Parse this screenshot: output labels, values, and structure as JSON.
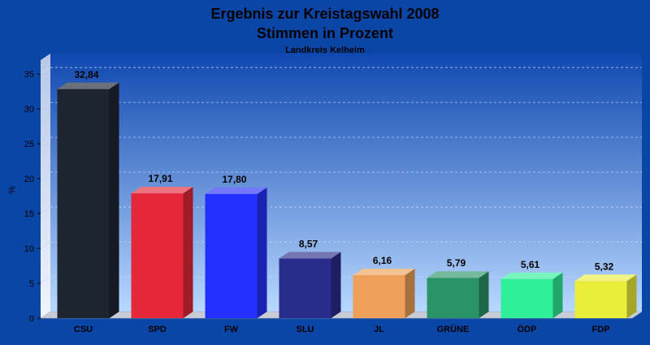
{
  "chart_data": {
    "type": "bar",
    "title": "Ergebnis zur Kreistagswahl 2008",
    "subtitle": "Stimmen in Prozent",
    "caption": "Landkreis Kelheim",
    "ylabel": "%",
    "xlabel": "",
    "ylim": [
      0,
      37
    ],
    "yticks": [
      0,
      5,
      10,
      15,
      20,
      25,
      30,
      35
    ],
    "grid": true,
    "categories": [
      "CSU",
      "SPD",
      "FW",
      "SLU",
      "JL",
      "GRÜNE",
      "ÖDP",
      "FDP"
    ],
    "values": [
      32.84,
      17.91,
      17.8,
      8.57,
      6.16,
      5.79,
      5.61,
      5.32
    ],
    "value_labels": [
      "32,84",
      "17,91",
      "17,80",
      "8,57",
      "6,16",
      "5,79",
      "5,61",
      "5,32"
    ],
    "colors": [
      "#1c2430",
      "#e4283a",
      "#2430ff",
      "#2a2c8c",
      "#eea05a",
      "#2a9468",
      "#2ef098",
      "#eaee3a"
    ]
  }
}
